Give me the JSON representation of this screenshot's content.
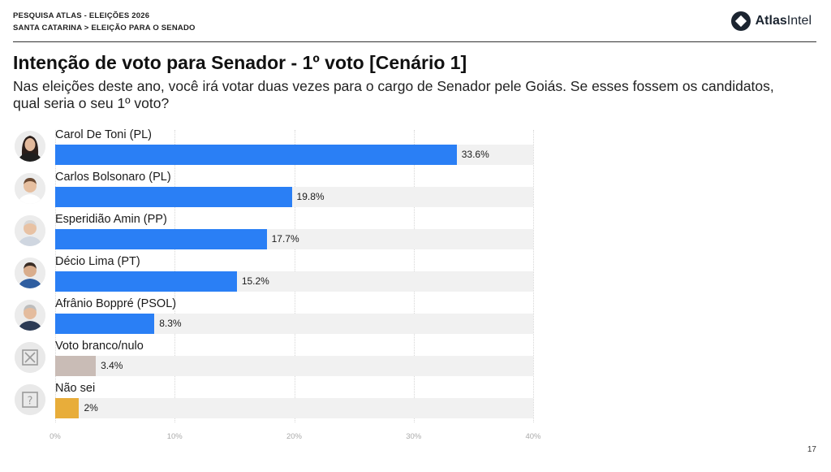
{
  "header": {
    "line1": "PESQUISA ATLAS - ELEIÇÕES 2026",
    "line2": "SANTA CATARINA > ELEIÇÃO PARA O SENADO",
    "logo_bold": "Atlas",
    "logo_light": "Intel"
  },
  "title": "Intenção de voto para Senador - 1º voto [Cenário 1]",
  "subtitle": "Nas eleições deste ano, você irá votar duas vezes para o cargo de Senador pele Goiás. Se esses fossem os candidatos, qual seria o seu 1º voto?",
  "page_number": "17",
  "colors": {
    "candidate_bar": "#2a7ff5",
    "blank_null_bar": "#c9bcb6",
    "dont_know_bar": "#e8ad3a",
    "track": "#f1f1f1"
  },
  "chart_data": {
    "type": "bar",
    "orientation": "horizontal",
    "categories": [
      "Carol De Toni (PL)",
      "Carlos Bolsonaro (PL)",
      "Esperidião Amin (PP)",
      "Décio Lima (PT)",
      "Afrânio Boppré (PSOL)",
      "Voto branco/nulo",
      "Não sei"
    ],
    "values": [
      33.6,
      19.8,
      17.7,
      15.2,
      8.3,
      3.4,
      2
    ],
    "value_labels": [
      "33.6%",
      "19.8%",
      "17.7%",
      "15.2%",
      "8.3%",
      "3.4%",
      "2%"
    ],
    "bar_colors": [
      "#2a7ff5",
      "#2a7ff5",
      "#2a7ff5",
      "#2a7ff5",
      "#2a7ff5",
      "#c9bcb6",
      "#e8ad3a"
    ],
    "icons": [
      "candidate-photo",
      "candidate-photo",
      "candidate-photo",
      "candidate-photo",
      "candidate-photo",
      "x-box-icon",
      "question-box-icon"
    ],
    "xlim": [
      0,
      40
    ],
    "xticks": [
      0,
      10,
      20,
      30,
      40
    ],
    "xtick_labels": [
      "0%",
      "10%",
      "20%",
      "30%",
      "40%"
    ],
    "grid": true
  }
}
